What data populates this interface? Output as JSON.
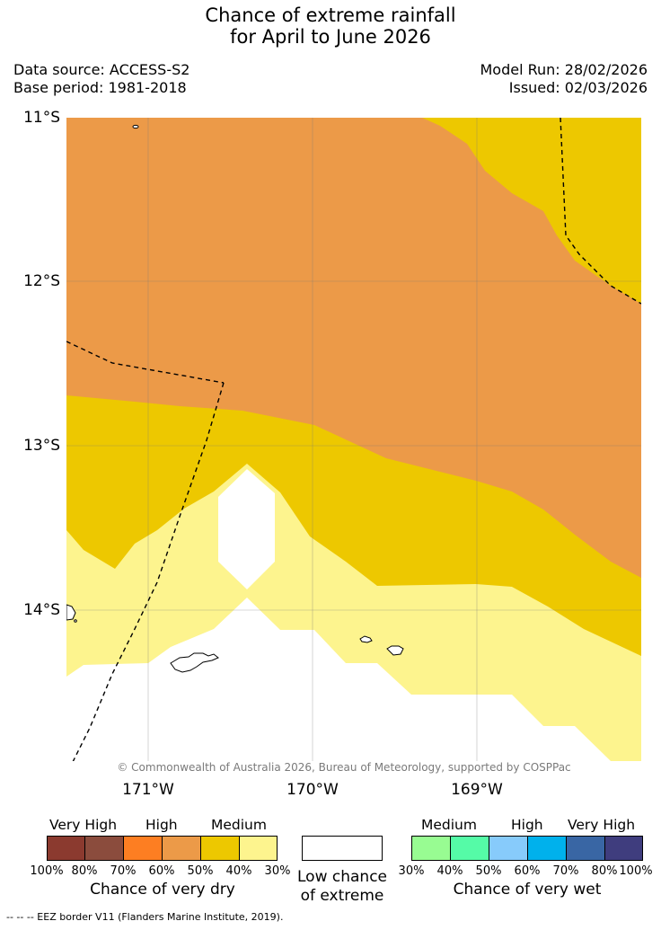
{
  "header": {
    "title_line1": "Chance of extreme rainfall",
    "title_line2": "for April to June 2026",
    "data_source": "Data source: ACCESS-S2",
    "base_period": "Base period: 1981-2018",
    "model_run": "Model Run: 28/02/2026",
    "issued": "Issued: 02/03/2026"
  },
  "map": {
    "lat_labels": [
      "11°S",
      "12°S",
      "13°S",
      "14°S"
    ],
    "lon_labels": [
      "171°W",
      "170°W",
      "169°W"
    ],
    "copyright": "© Commonwealth of Australia 2026, Bureau of Meteorology, supported by COSPPac",
    "zone_colors": {
      "dry_50_60": "#ec9a48",
      "dry_40_50": "#edc800",
      "dry_30_40": "#fdf48e",
      "low_chance": "#ffffff"
    }
  },
  "legend": {
    "dry": {
      "categories": [
        "Very High",
        "High",
        "Medium"
      ],
      "colors": [
        "#8b3a2f",
        "#8b4c3d",
        "#fd7e22",
        "#ec9a48",
        "#edc800",
        "#fdf48e"
      ],
      "ticks": [
        "100%",
        "80%",
        "70%",
        "60%",
        "50%",
        "40%",
        "30%"
      ],
      "title": "Chance of very dry"
    },
    "neutral": {
      "line1": "Low chance",
      "line2": "of extreme",
      "color": "#ffffff"
    },
    "wet": {
      "categories": [
        "Medium",
        "High",
        "Very High"
      ],
      "colors": [
        "#98fc92",
        "#55fba7",
        "#87cbfb",
        "#00b1ec",
        "#3966a4",
        "#3f3d7e"
      ],
      "ticks": [
        "30%",
        "40%",
        "50%",
        "60%",
        "70%",
        "80%",
        "100%"
      ],
      "title": "Chance of very wet"
    }
  },
  "footnote": "-- -- -- EEZ border V11 (Flanders Marine Institute, 2019)."
}
